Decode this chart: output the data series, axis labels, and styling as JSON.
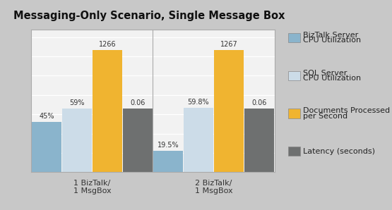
{
  "title": "Messaging-Only Scenario, Single Message Box",
  "groups": [
    "1 BizTalk/\n1 MsgBox",
    "2 BizTalk/\n1 MsgBox"
  ],
  "series": [
    {
      "name": "BizTalk Server\nCPU Utilization",
      "display_values": [
        520,
        225
      ],
      "labels": [
        "45%",
        "19.5%"
      ],
      "color": "#8ab4cc"
    },
    {
      "name": "SQL Server\nCPU Utilization",
      "display_values": [
        660,
        670
      ],
      "labels": [
        "59%",
        "59.8%"
      ],
      "color": "#ccdce8"
    },
    {
      "name": "Documents Processed\nper Second",
      "display_values": [
        1266,
        1267
      ],
      "labels": [
        "1266",
        "1267"
      ],
      "color": "#f0b430"
    },
    {
      "name": "Latency (seconds)",
      "display_values": [
        660,
        660
      ],
      "labels": [
        "0.06",
        "0.06"
      ],
      "color": "#6e7070"
    }
  ],
  "ylim": [
    0,
    1480
  ],
  "background_color": "#c8c8c8",
  "plot_bg_color": "#f2f2f2",
  "title_fontsize": 10.5,
  "bar_width": 0.17,
  "legend_fontsize": 8,
  "grid_color": "#e0e0e0"
}
